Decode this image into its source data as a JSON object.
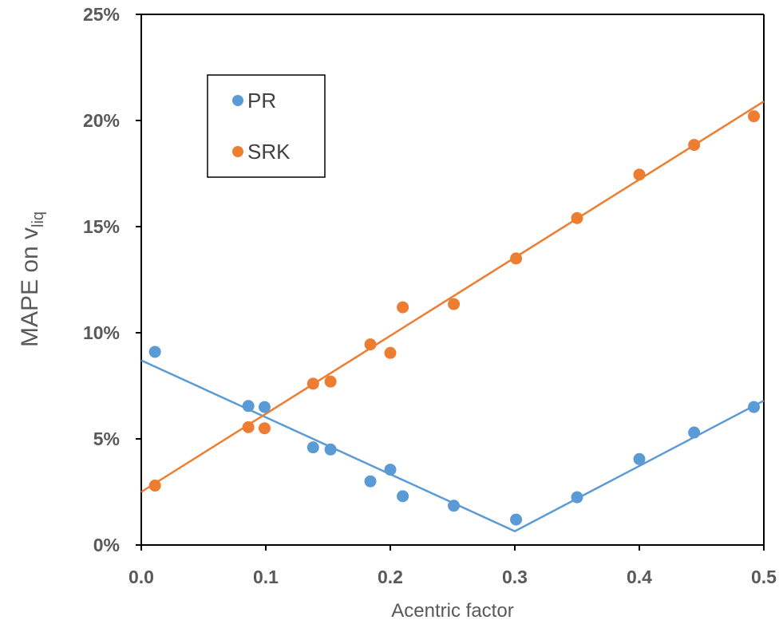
{
  "chart_data": {
    "type": "scatter",
    "title": "",
    "xlabel": "Acentric factor",
    "ylabel": {
      "main": "MAPE on v",
      "subscript": "liq"
    },
    "xlim": [
      0.0,
      0.5
    ],
    "ylim": [
      0,
      25
    ],
    "x_ticks": [
      "0.0",
      "0.1",
      "0.2",
      "0.3",
      "0.4",
      "0.5"
    ],
    "y_ticks": [
      "0%",
      "5%",
      "10%",
      "15%",
      "20%",
      "25%"
    ],
    "grid": false,
    "legend_position": "top-left",
    "series": [
      {
        "name": "PR",
        "color": "#5B9BD5",
        "points": [
          [
            0.011,
            9.1
          ],
          [
            0.086,
            6.55
          ],
          [
            0.099,
            6.5
          ],
          [
            0.138,
            4.6
          ],
          [
            0.152,
            4.5
          ],
          [
            0.184,
            3.0
          ],
          [
            0.2,
            3.55
          ],
          [
            0.21,
            2.3
          ],
          [
            0.251,
            1.85
          ],
          [
            0.301,
            1.2
          ],
          [
            0.35,
            2.25
          ],
          [
            0.4,
            4.05
          ],
          [
            0.444,
            5.3
          ],
          [
            0.492,
            6.5
          ]
        ],
        "trend": [
          [
            0.0,
            8.7
          ],
          [
            0.3,
            0.65
          ],
          [
            0.5,
            6.8
          ]
        ]
      },
      {
        "name": "SRK",
        "color": "#ED7D31",
        "points": [
          [
            0.011,
            2.8
          ],
          [
            0.086,
            5.55
          ],
          [
            0.099,
            5.5
          ],
          [
            0.138,
            7.6
          ],
          [
            0.152,
            7.7
          ],
          [
            0.184,
            9.45
          ],
          [
            0.2,
            9.05
          ],
          [
            0.21,
            11.2
          ],
          [
            0.251,
            11.35
          ],
          [
            0.301,
            13.5
          ],
          [
            0.35,
            15.4
          ],
          [
            0.4,
            17.45
          ],
          [
            0.444,
            18.85
          ],
          [
            0.492,
            20.2
          ]
        ],
        "trend": [
          [
            0.0,
            2.5
          ],
          [
            0.5,
            20.9
          ]
        ]
      }
    ]
  }
}
